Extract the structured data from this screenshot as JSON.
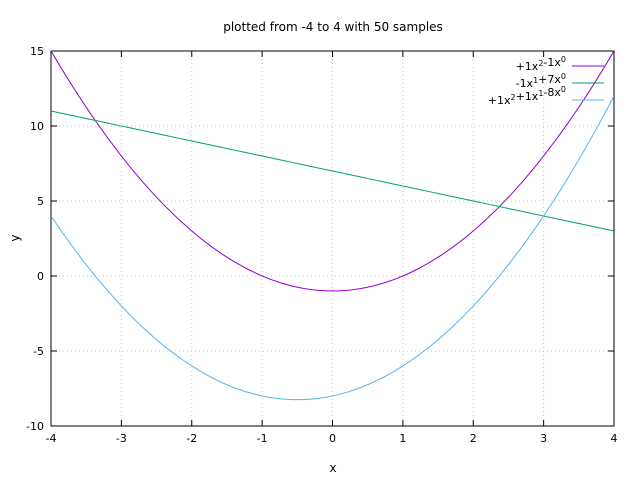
{
  "chart_data": {
    "type": "line",
    "title": "plotted from -4 to 4 with 50 samples",
    "xlabel": "x",
    "ylabel": "y",
    "xlim": [
      -4,
      4
    ],
    "ylim": [
      -10,
      15
    ],
    "xticks": [
      -4,
      -3,
      -2,
      -1,
      0,
      1,
      2,
      3,
      4
    ],
    "yticks": [
      -10,
      -5,
      0,
      5,
      10,
      15
    ],
    "grid": true,
    "legend_position": "top-right",
    "samples": 50,
    "series": [
      {
        "name": "+1x2-1x0",
        "label_base": [
          "+1x",
          "-1x"
        ],
        "label_sup": [
          "2",
          "0"
        ],
        "coefficients": [
          1,
          0,
          -1
        ],
        "color": "#9400d3"
      },
      {
        "name": "-1x1+7x0",
        "label_base": [
          "-1x",
          "+7x"
        ],
        "label_sup": [
          "1",
          "0"
        ],
        "coefficients": [
          0,
          -1,
          7
        ],
        "color": "#009e73"
      },
      {
        "name": "+1x2+1x1-8x0",
        "label_base": [
          "+1x",
          "+1x",
          "-8x"
        ],
        "label_sup": [
          "2",
          "1",
          "0"
        ],
        "coefficients": [
          1,
          1,
          -8
        ],
        "color": "#56b4e9"
      }
    ]
  }
}
